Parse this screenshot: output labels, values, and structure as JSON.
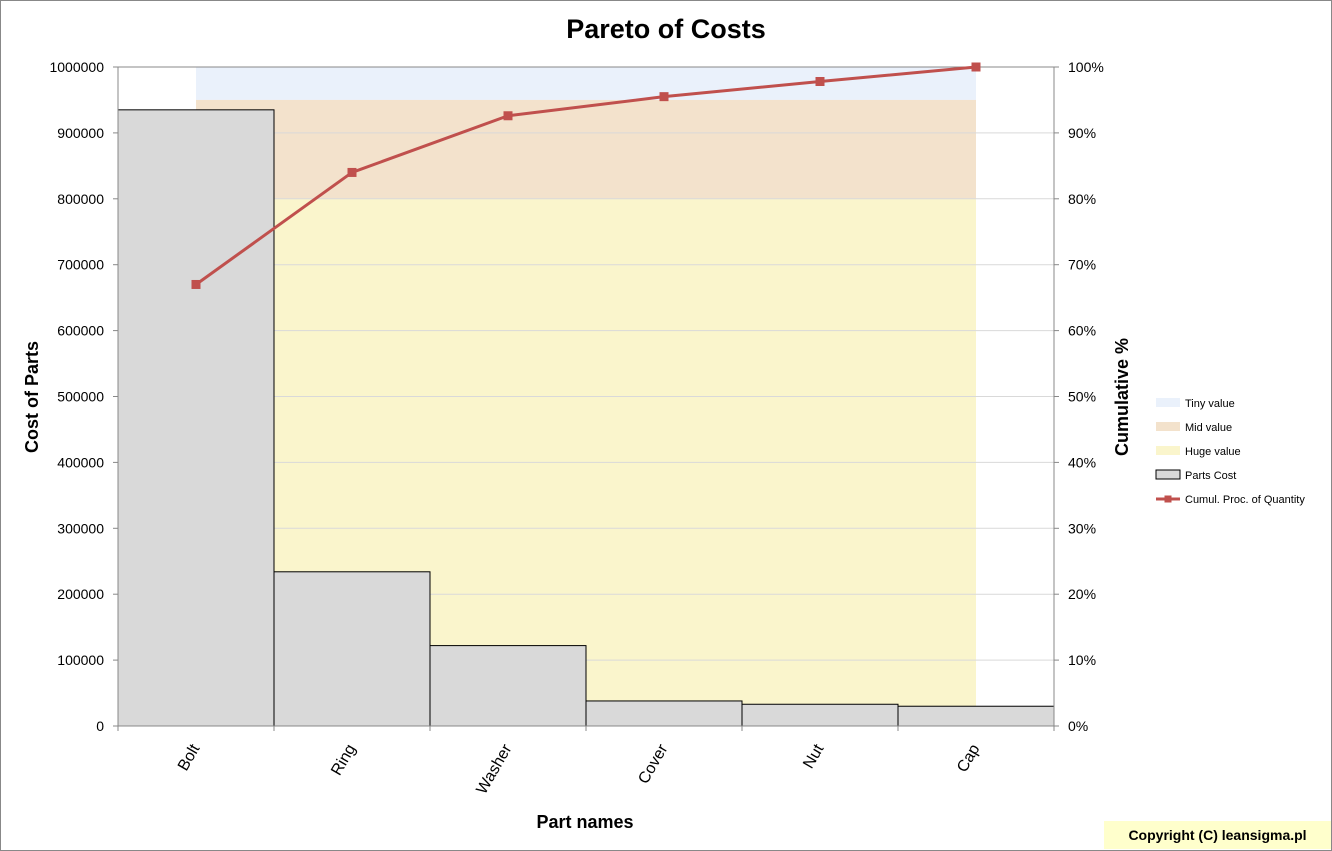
{
  "chart_data": {
    "type": "bar",
    "title": "Pareto of Costs",
    "xlabel": "Part names",
    "ylabel": "Cost of Parts",
    "y2label": "Cumulative %",
    "categories": [
      "Bolt",
      "Ring",
      "Washer",
      "Cover",
      "Nut",
      "Cap"
    ],
    "ylim": [
      0,
      1000000
    ],
    "yticks": [
      "0",
      "100000",
      "200000",
      "300000",
      "400000",
      "500000",
      "600000",
      "700000",
      "800000",
      "900000",
      "1000000"
    ],
    "y2lim": [
      0,
      100
    ],
    "y2ticks": [
      "0%",
      "10%",
      "20%",
      "30%",
      "40%",
      "50%",
      "60%",
      "70%",
      "80%",
      "90%",
      "100%"
    ],
    "grid": true,
    "legend_position": "right",
    "series": [
      {
        "name": "Parts Cost",
        "kind": "bar",
        "axis": "left",
        "color": "#d9d9d9",
        "values": [
          935000,
          234000,
          122000,
          38000,
          33000,
          30000
        ]
      },
      {
        "name": "Cumul. Proc. of Quantity",
        "kind": "line",
        "axis": "right",
        "color": "#c0504d",
        "values": [
          67,
          84,
          92.6,
          95.5,
          97.8,
          100
        ]
      }
    ],
    "bands": [
      {
        "name": "Tiny value",
        "from": 95,
        "to": 100,
        "color": "#eaf1fb"
      },
      {
        "name": "Mid value",
        "from": 80,
        "to": 95,
        "color": "#f3e2cc"
      },
      {
        "name": "Huge value",
        "from": 0,
        "to": 80,
        "color": "#faf5cc"
      }
    ]
  },
  "footer": {
    "copyright": "Copyright (C) leansigma.pl"
  }
}
